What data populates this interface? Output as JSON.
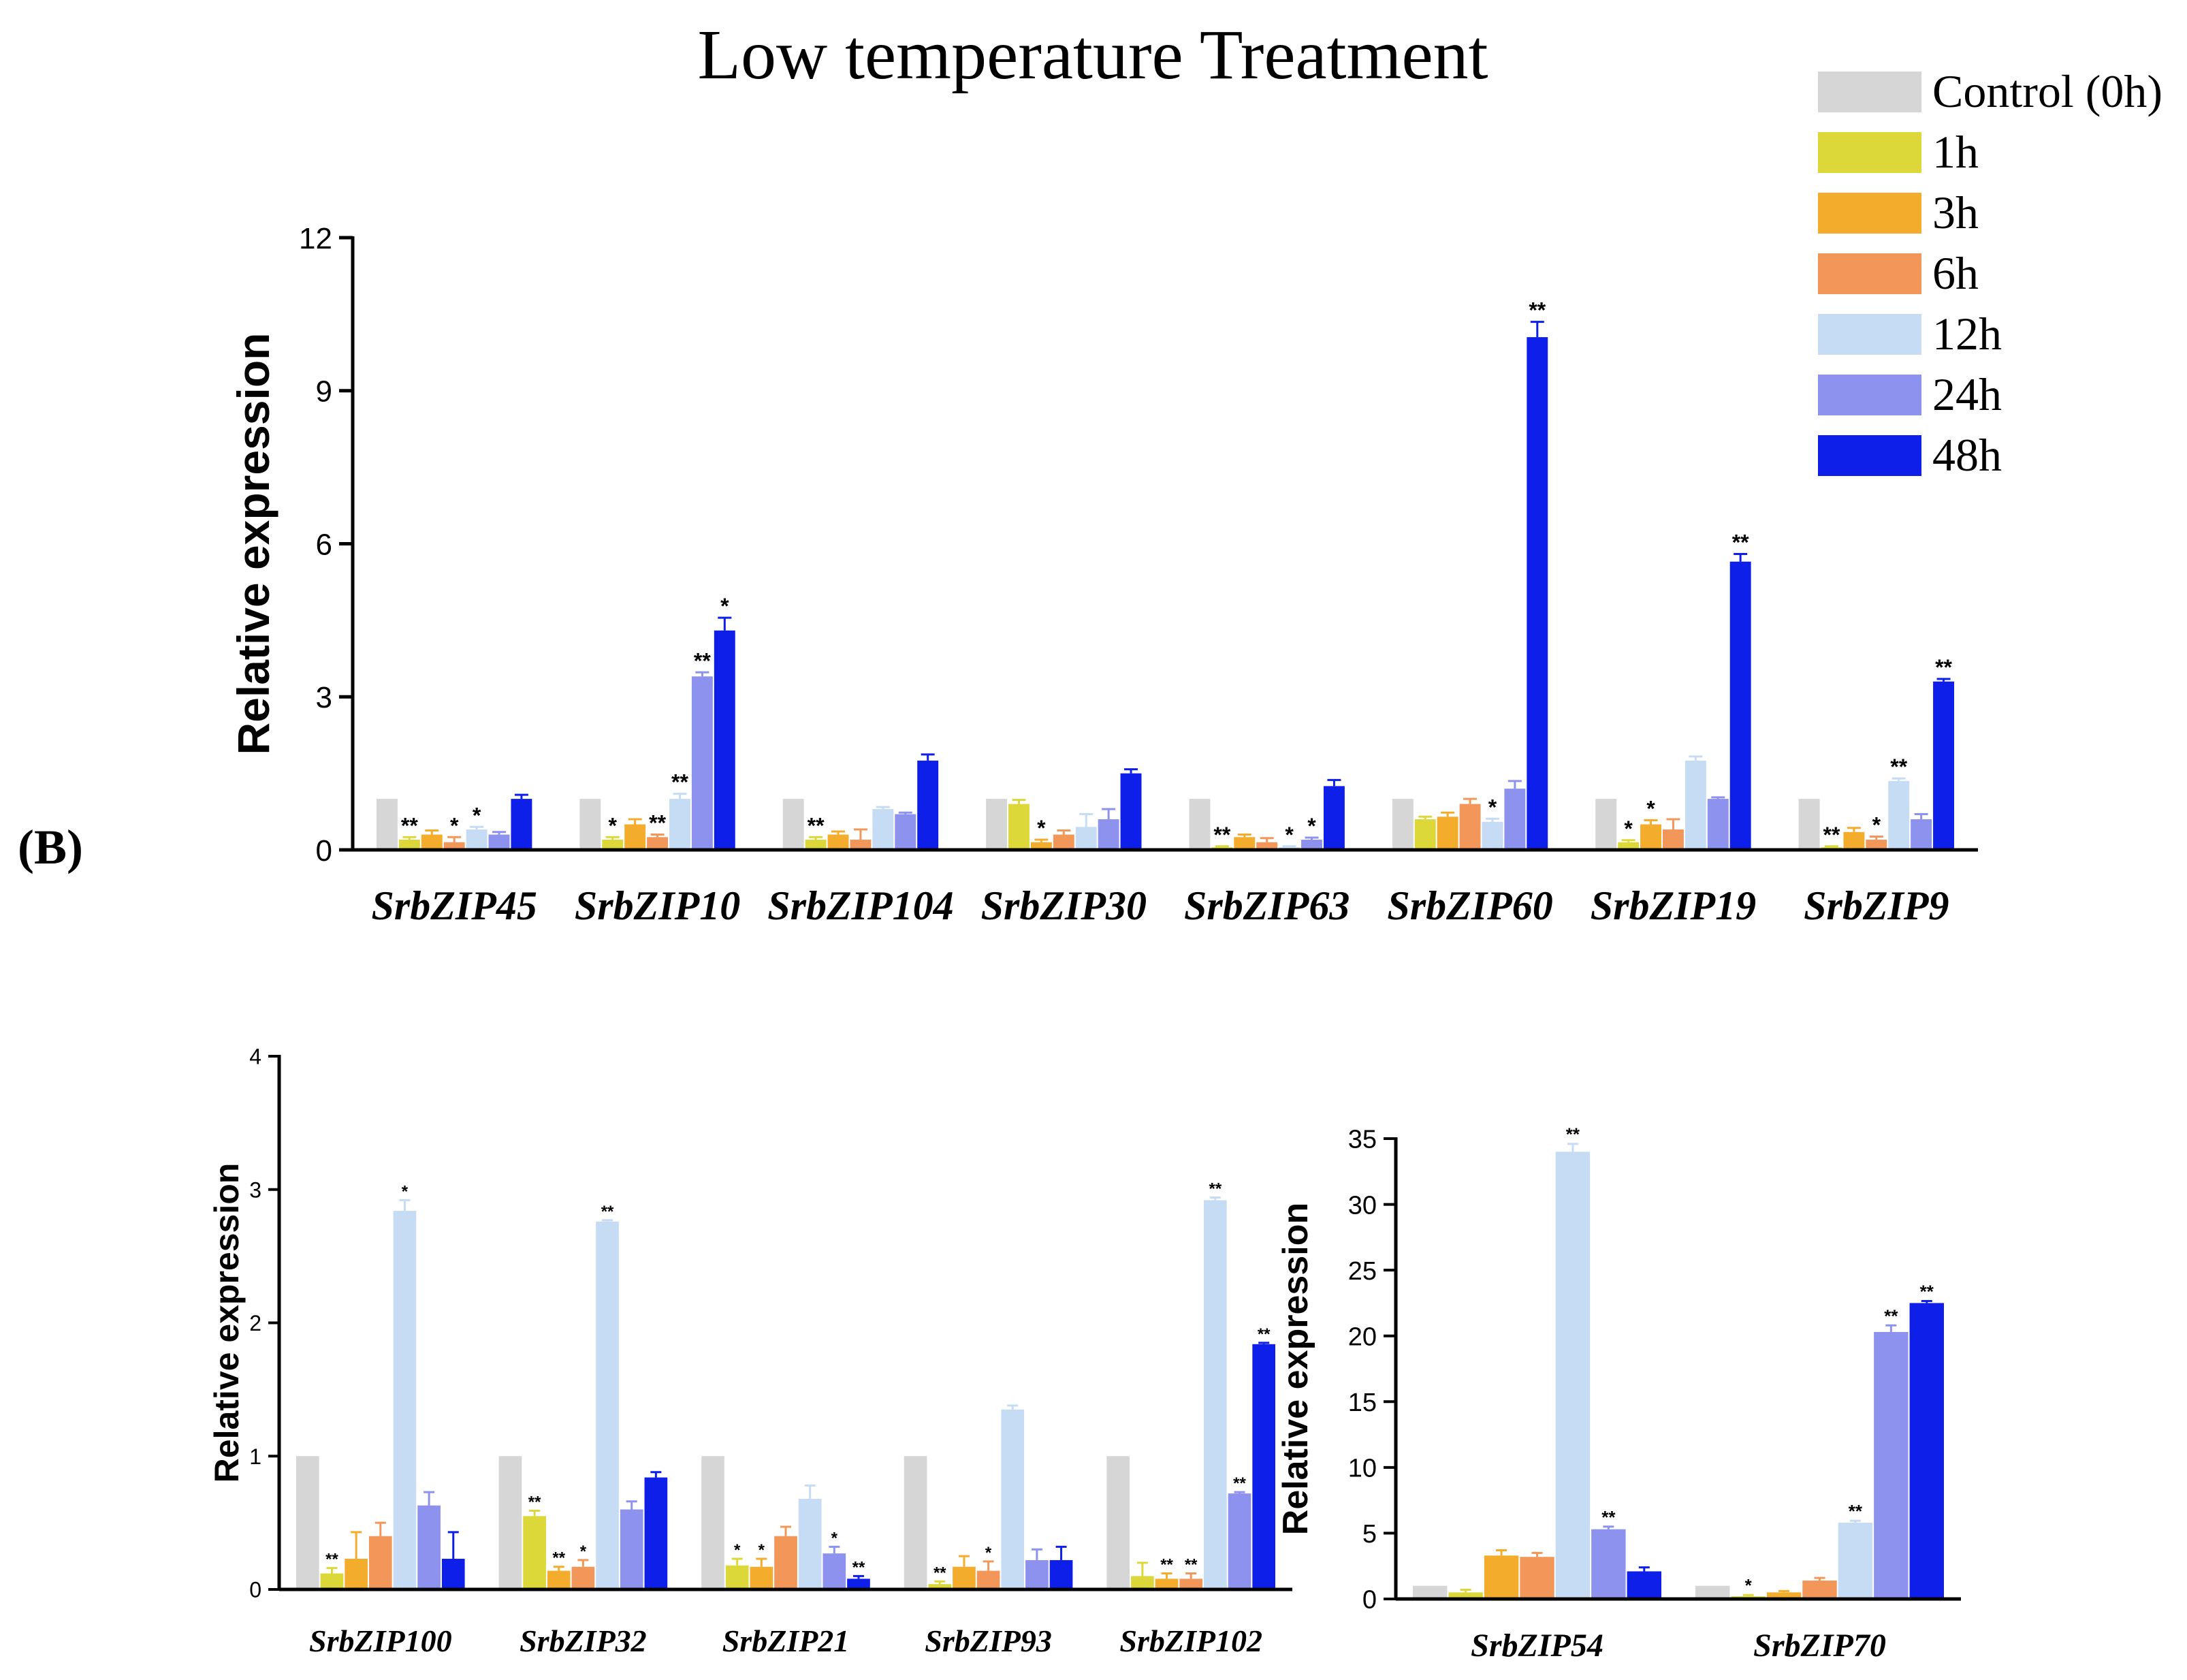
{
  "figure": {
    "title": "Low temperature   Treatment",
    "panel_label": "(B)"
  },
  "legend": {
    "entries": [
      {
        "label": "Control (0h)",
        "color": "#d6d6d6"
      },
      {
        "label": "1h",
        "color": "#dcd83a"
      },
      {
        "label": "3h",
        "color": "#f3ac2b"
      },
      {
        "label": "6h",
        "color": "#f29759"
      },
      {
        "label": "12h",
        "color": "#c6dcf4"
      },
      {
        "label": "24h",
        "color": "#8d92ee"
      },
      {
        "label": "48h",
        "color": "#0d1fe8"
      }
    ]
  },
  "chart_data": [
    {
      "type": "bar",
      "id": "top",
      "title": "",
      "xlabel": "",
      "ylabel": "Relative expression",
      "ylim": [
        0,
        12
      ],
      "yticks": [
        0,
        3,
        6,
        9,
        12
      ],
      "ytick_labels": [
        "0",
        "3",
        "6",
        "9",
        "12"
      ],
      "categories": [
        "SrbZIP45",
        "SrbZIP10",
        "SrbZIP104",
        "SrbZIP30",
        "SrbZIP63",
        "SrbZIP60",
        "SrbZIP19",
        "SrbZIP9"
      ],
      "series": [
        {
          "name": "Control (0h)",
          "values": [
            1.0,
            1.0,
            1.0,
            1.0,
            1.0,
            1.0,
            1.0,
            1.0
          ],
          "errors": [
            0,
            0,
            0,
            0,
            0,
            0,
            0,
            0
          ],
          "sig": [
            "",
            "",
            "",
            "",
            "",
            "",
            "",
            ""
          ]
        },
        {
          "name": "1h",
          "values": [
            0.2,
            0.2,
            0.2,
            0.9,
            0.05,
            0.6,
            0.15,
            0.05
          ],
          "errors": [
            0.05,
            0.05,
            0.05,
            0.08,
            0.02,
            0.05,
            0.04,
            0.02
          ],
          "sig": [
            "**",
            "*",
            "**",
            "",
            "**",
            "",
            "*",
            "**"
          ]
        },
        {
          "name": "3h",
          "values": [
            0.3,
            0.5,
            0.3,
            0.15,
            0.25,
            0.65,
            0.5,
            0.35
          ],
          "errors": [
            0.08,
            0.1,
            0.06,
            0.05,
            0.05,
            0.08,
            0.08,
            0.08
          ],
          "sig": [
            "",
            "",
            "",
            "*",
            "",
            "",
            "*",
            ""
          ]
        },
        {
          "name": "6h",
          "values": [
            0.15,
            0.25,
            0.2,
            0.3,
            0.15,
            0.9,
            0.4,
            0.2
          ],
          "errors": [
            0.1,
            0.05,
            0.2,
            0.08,
            0.08,
            0.1,
            0.2,
            0.06
          ],
          "sig": [
            "*",
            "**",
            "",
            "",
            "",
            "",
            "",
            "*"
          ]
        },
        {
          "name": "12h",
          "values": [
            0.4,
            1.0,
            0.8,
            0.45,
            0.05,
            0.55,
            1.75,
            1.35
          ],
          "errors": [
            0.05,
            0.1,
            0.04,
            0.25,
            0.02,
            0.06,
            0.08,
            0.05
          ],
          "sig": [
            "*",
            "**",
            "",
            "",
            "*",
            "*",
            "",
            "**"
          ]
        },
        {
          "name": "24h",
          "values": [
            0.3,
            3.4,
            0.7,
            0.6,
            0.2,
            1.2,
            1.0,
            0.6
          ],
          "errors": [
            0.05,
            0.08,
            0.03,
            0.2,
            0.04,
            0.15,
            0.03,
            0.1
          ],
          "sig": [
            "",
            "**",
            "",
            "",
            "*",
            "",
            "",
            ""
          ]
        },
        {
          "name": "48h",
          "values": [
            1.0,
            4.3,
            1.75,
            1.5,
            1.25,
            10.05,
            5.65,
            3.3
          ],
          "errors": [
            0.08,
            0.25,
            0.12,
            0.08,
            0.12,
            0.3,
            0.15,
            0.05
          ],
          "sig": [
            "",
            "*",
            "",
            "",
            "",
            "**",
            "**",
            "**"
          ]
        }
      ]
    },
    {
      "type": "bar",
      "id": "bottom-left",
      "title": "",
      "xlabel": "",
      "ylabel": "Relative expression",
      "ylim": [
        0,
        4
      ],
      "yticks": [
        0,
        1,
        2,
        3,
        4
      ],
      "ytick_labels": [
        "0",
        "1",
        "2",
        "3",
        "4"
      ],
      "categories": [
        "SrbZIP100",
        "SrbZIP32",
        "SrbZIP21",
        "SrbZIP93",
        "SrbZIP102"
      ],
      "series": [
        {
          "name": "Control (0h)",
          "values": [
            1.0,
            1.0,
            1.0,
            1.0,
            1.0
          ],
          "errors": [
            0,
            0,
            0,
            0,
            0
          ],
          "sig": [
            "",
            "",
            "",
            "",
            ""
          ]
        },
        {
          "name": "1h",
          "values": [
            0.12,
            0.55,
            0.18,
            0.04,
            0.1
          ],
          "errors": [
            0.04,
            0.04,
            0.05,
            0.02,
            0.1
          ],
          "sig": [
            "**",
            "**",
            "*",
            "**",
            ""
          ]
        },
        {
          "name": "3h",
          "values": [
            0.23,
            0.14,
            0.17,
            0.17,
            0.08
          ],
          "errors": [
            0.2,
            0.03,
            0.06,
            0.08,
            0.04
          ],
          "sig": [
            "",
            "**",
            "*",
            "",
            "**"
          ]
        },
        {
          "name": "6h",
          "values": [
            0.4,
            0.17,
            0.4,
            0.14,
            0.08
          ],
          "errors": [
            0.1,
            0.05,
            0.07,
            0.07,
            0.04
          ],
          "sig": [
            "",
            "*",
            "",
            "*",
            "**"
          ]
        },
        {
          "name": "12h",
          "values": [
            2.84,
            2.76,
            0.68,
            1.35,
            2.92
          ],
          "errors": [
            0.08,
            0.01,
            0.1,
            0.03,
            0.02
          ],
          "sig": [
            "*",
            "**",
            "",
            "",
            "**"
          ]
        },
        {
          "name": "24h",
          "values": [
            0.63,
            0.6,
            0.27,
            0.22,
            0.72
          ],
          "errors": [
            0.1,
            0.06,
            0.05,
            0.08,
            0.01
          ],
          "sig": [
            "",
            "",
            "*",
            "",
            "**"
          ]
        },
        {
          "name": "48h",
          "values": [
            0.23,
            0.84,
            0.08,
            0.22,
            1.84
          ],
          "errors": [
            0.2,
            0.04,
            0.02,
            0.1,
            0.01
          ],
          "sig": [
            "",
            "",
            "**",
            "",
            "**"
          ]
        }
      ]
    },
    {
      "type": "bar",
      "id": "bottom-right",
      "title": "",
      "xlabel": "",
      "ylabel": "Relative expression",
      "ylim": [
        0,
        35
      ],
      "yticks": [
        0,
        5,
        10,
        15,
        20,
        25,
        30,
        35
      ],
      "ytick_labels": [
        "0",
        "5",
        "10",
        "15",
        "20",
        "25",
        "30",
        "35"
      ],
      "categories": [
        "SrbZIP54",
        "SrbZIP70"
      ],
      "series": [
        {
          "name": "Control (0h)",
          "values": [
            1.0,
            1.0
          ],
          "errors": [
            0,
            0
          ],
          "sig": [
            "",
            ""
          ]
        },
        {
          "name": "1h",
          "values": [
            0.5,
            0.2
          ],
          "errors": [
            0.2,
            0.1
          ],
          "sig": [
            "",
            "*"
          ]
        },
        {
          "name": "3h",
          "values": [
            3.3,
            0.5
          ],
          "errors": [
            0.4,
            0.1
          ],
          "sig": [
            "",
            ""
          ]
        },
        {
          "name": "6h",
          "values": [
            3.2,
            1.4
          ],
          "errors": [
            0.3,
            0.2
          ],
          "sig": [
            "",
            ""
          ]
        },
        {
          "name": "12h",
          "values": [
            34.0,
            5.8
          ],
          "errors": [
            0.6,
            0.15
          ],
          "sig": [
            "**",
            "**"
          ]
        },
        {
          "name": "24h",
          "values": [
            5.3,
            20.3
          ],
          "errors": [
            0.2,
            0.5
          ],
          "sig": [
            "**",
            "**"
          ]
        },
        {
          "name": "48h",
          "values": [
            2.1,
            22.5
          ],
          "errors": [
            0.3,
            0.15
          ],
          "sig": [
            "",
            "**"
          ]
        }
      ]
    }
  ]
}
